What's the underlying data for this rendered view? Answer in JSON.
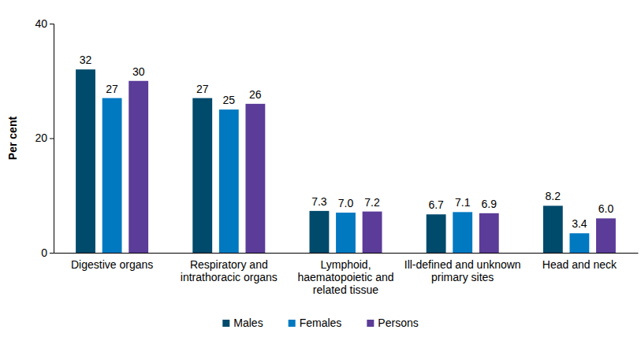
{
  "chart_data": {
    "type": "bar",
    "y_label": "Per cent",
    "categories": [
      "Digestive organs",
      "Respiratory and intrathoracic organs",
      "Lymphoid, haematopoietic and related tissue",
      "Ill-defined and unknown primary sites",
      "Head and neck"
    ],
    "series": [
      {
        "name": "Males",
        "color": "#004a6c",
        "values": [
          32,
          27,
          7.3,
          6.7,
          8.2
        ],
        "value_labels": [
          "32",
          "27",
          "7.3",
          "6.7",
          "8.2"
        ]
      },
      {
        "name": "Females",
        "color": "#0079c1",
        "values": [
          27,
          25,
          7.0,
          7.1,
          3.4
        ],
        "value_labels": [
          "27",
          "25",
          "7.0",
          "7.1",
          "3.4"
        ]
      },
      {
        "name": "Persons",
        "color": "#5b3c98",
        "values": [
          30,
          26,
          7.2,
          6.9,
          6.0
        ],
        "value_labels": [
          "30",
          "26",
          "7.2",
          "6.9",
          "6.0"
        ]
      }
    ],
    "ylim": [
      0,
      40
    ],
    "yticks": [
      0,
      20,
      40
    ],
    "grid": false,
    "data_labels": true,
    "legend": "bottom"
  }
}
